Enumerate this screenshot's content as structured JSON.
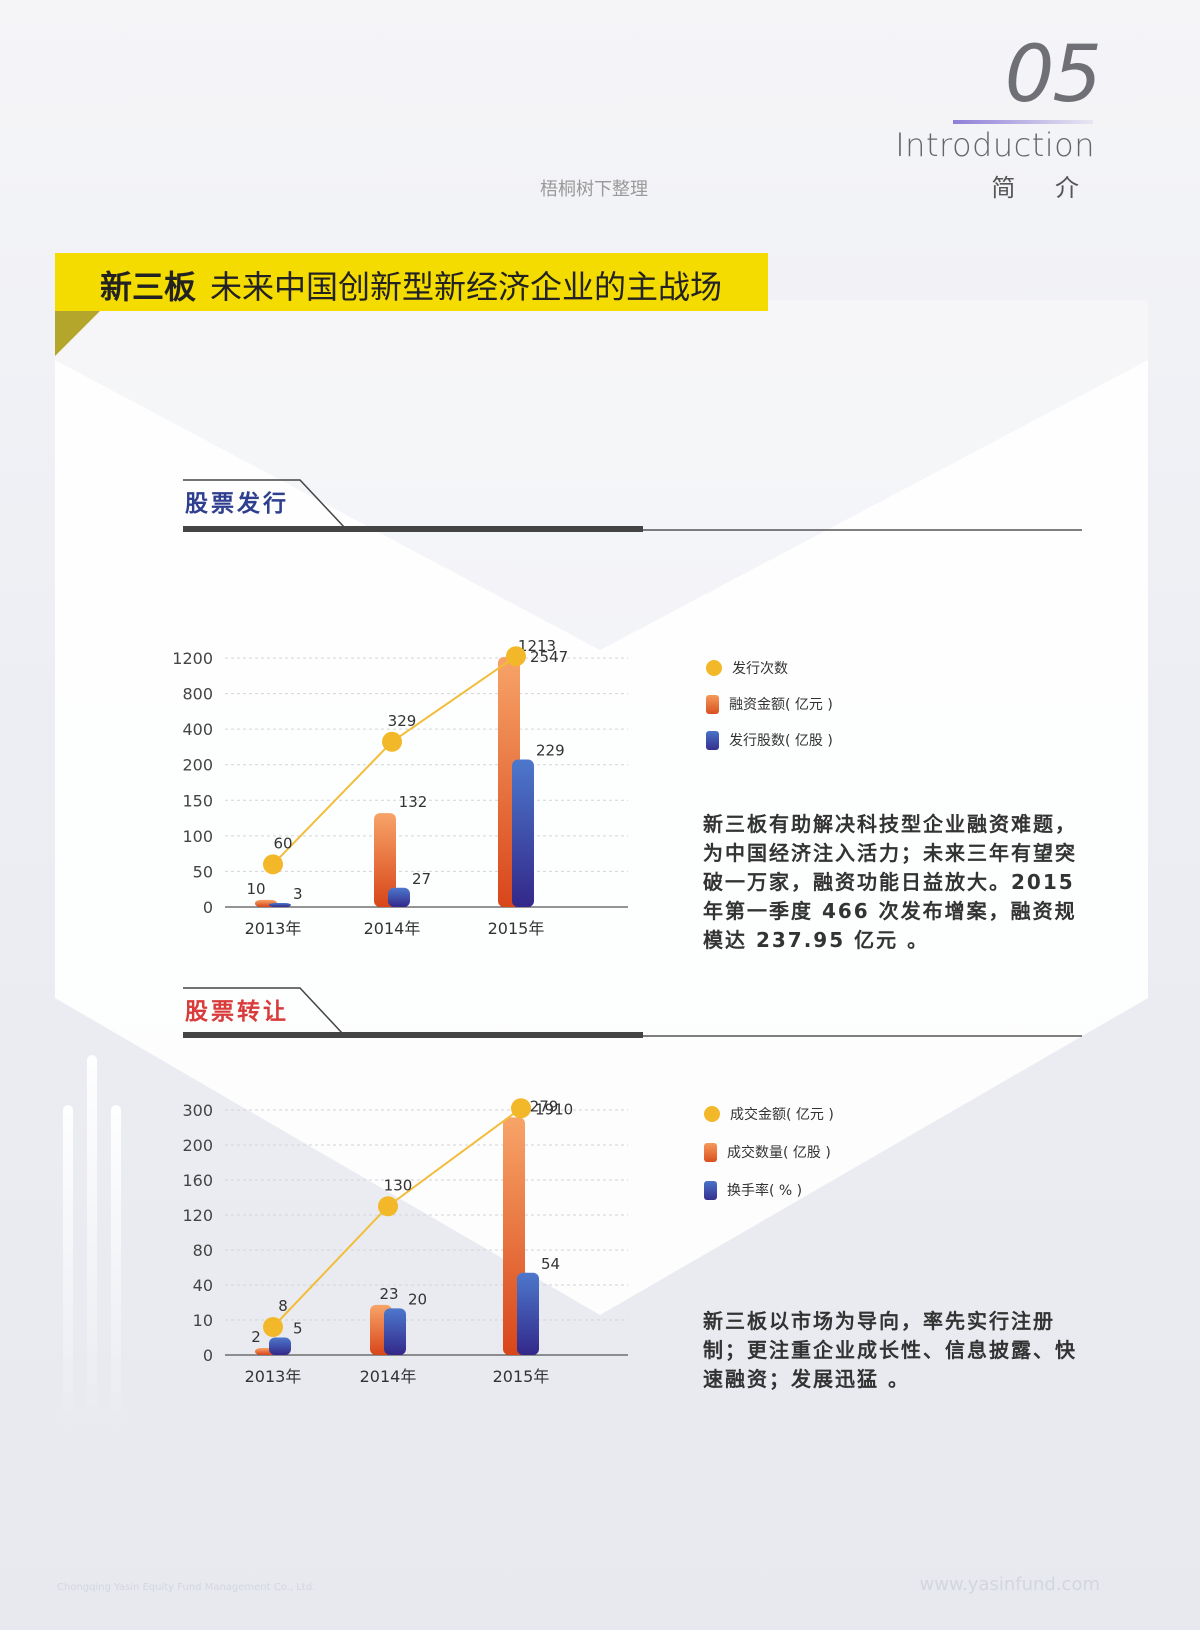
{
  "header": {
    "page_number": "05",
    "intro_en": "Introduction",
    "intro_cn": "简 介",
    "organizer": "梧桐树下整理"
  },
  "banner": {
    "title_bold": "新三板",
    "title_rest": "未来中国创新型新经济企业的主战场"
  },
  "section1": {
    "title": "股票发行",
    "title_color": "#2f3f8f",
    "description": "新三板有助解决科技型企业融资难题，为中国经济注入活力；未来三年有望突破一万家，融资功能日益放大。2015 年第一季度 466 次发布增案，融资规模达 237.95 亿元 。",
    "legend": [
      {
        "label": "发行次数",
        "marker": "circle",
        "color": "#f2b82a"
      },
      {
        "label": "融资金额( 亿元 )",
        "marker": "bar",
        "color": "#e4602a"
      },
      {
        "label": "发行股数( 亿股 )",
        "marker": "bar",
        "color": "#3d4aa8"
      }
    ]
  },
  "section2": {
    "title": "股票转让",
    "title_color": "#d93a3a",
    "description": "新三板以市场为导向，率先实行注册制；更注重企业成长性、信息披露、快速融资；发展迅猛 。",
    "legend": [
      {
        "label": "成交金额( 亿元 )",
        "marker": "circle",
        "color": "#f2b82a"
      },
      {
        "label": "成交数量( 亿股 )",
        "marker": "bar",
        "color": "#e4602a"
      },
      {
        "label": "换手率( % )",
        "marker": "bar",
        "color": "#3d4aa8"
      }
    ]
  },
  "chart_data": [
    {
      "type": "bar",
      "title": "股票发行",
      "categories": [
        "2013年",
        "2014年",
        "2015年"
      ],
      "y_ticks": [
        "0",
        "50",
        "100",
        "150",
        "200",
        "400",
        "800",
        "1200"
      ],
      "y_scale": "non-linear category ticks",
      "grid": true,
      "legend_position": "right",
      "series": [
        {
          "name": "发行次数",
          "kind": "line",
          "values": [
            60,
            329,
            2547
          ],
          "labels": [
            "60",
            "329",
            "2547"
          ],
          "color": "#f2b82a"
        },
        {
          "name": "融资金额( 亿元 )",
          "kind": "bar",
          "values": [
            10,
            132,
            1213
          ],
          "labels": [
            "10",
            "132",
            "1213"
          ],
          "color": "#e4602a"
        },
        {
          "name": "发行股数( 亿股 )",
          "kind": "bar",
          "values": [
            3,
            27,
            229
          ],
          "labels": [
            "3",
            "27",
            "229"
          ],
          "color": "#3d4aa8"
        }
      ]
    },
    {
      "type": "bar",
      "title": "股票转让",
      "categories": [
        "2013年",
        "2014年",
        "2015年"
      ],
      "y_ticks": [
        "0",
        "10",
        "40",
        "80",
        "120",
        "160",
        "200",
        "300"
      ],
      "y_scale": "non-linear category ticks",
      "grid": true,
      "legend_position": "right",
      "series": [
        {
          "name": "成交金额( 亿元 )",
          "kind": "line",
          "values": [
            8,
            130,
            1910
          ],
          "labels": [
            "8",
            "130",
            "1910"
          ],
          "color": "#f2b82a"
        },
        {
          "name": "成交数量( 亿股 )",
          "kind": "bar",
          "values": [
            2,
            23,
            279
          ],
          "labels": [
            "2",
            "23",
            "279"
          ],
          "color": "#e4602a"
        },
        {
          "name": "换手率( % )",
          "kind": "bar",
          "values": [
            5,
            20,
            54
          ],
          "labels": [
            "5",
            "20",
            "54"
          ],
          "color": "#3d4aa8"
        }
      ]
    }
  ],
  "footer": {
    "company": "Chongqing Yasin Equity Fund Management Co., Ltd.",
    "website": "www.yasinfund.com"
  }
}
